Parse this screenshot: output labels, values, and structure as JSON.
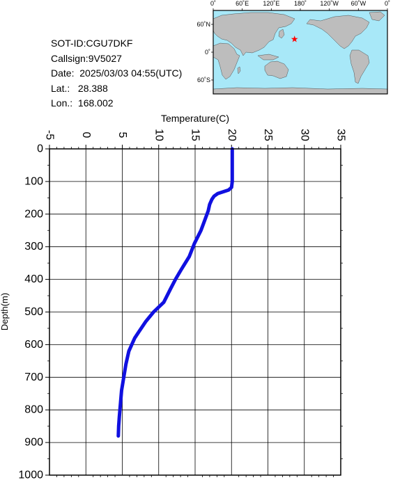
{
  "info": {
    "sot_id": "SOT-ID:CGU7DKF",
    "callsign": "Callsign:9V5027",
    "date": "Date:  2025/03/03 04:55(UTC)",
    "lat": "Lat.:   28.388",
    "lon": "Lon.:  168.002"
  },
  "map": {
    "lon_labels": [
      "0˚",
      "60˚E",
      "120˚E",
      "180˚",
      "120˚W",
      "60˚W",
      "0˚"
    ],
    "lat_labels": [
      "60˚N",
      "0˚",
      "60˚S"
    ],
    "marker_lat": 28.388,
    "marker_lon": 168.002,
    "ocean_color": "#a8e8f8",
    "land_color": "#bdbdbd",
    "marker_color": "#ff0000"
  },
  "chart_data": {
    "type": "line",
    "xlabel": "Temperature(C)",
    "ylabel": "Depth(m)",
    "xlim": [
      -5,
      35
    ],
    "ylim": [
      0,
      1000
    ],
    "x_ticks": [
      -5,
      0,
      5,
      10,
      15,
      20,
      25,
      30,
      35
    ],
    "y_ticks": [
      0,
      100,
      200,
      300,
      400,
      500,
      600,
      700,
      800,
      900,
      1000
    ],
    "grid": true,
    "line_color": "#1010e0",
    "series": [
      {
        "depth": [
          0,
          50,
          100,
          118,
          126,
          132,
          137,
          145,
          155,
          170,
          190,
          220,
          250,
          290,
          330,
          370,
          400,
          430,
          470,
          500,
          530,
          560,
          580,
          600,
          620,
          660,
          700,
          740,
          780,
          820,
          850,
          880
        ],
        "temperature": [
          20.1,
          20.1,
          20.1,
          20.0,
          19.6,
          18.8,
          18.1,
          17.6,
          17.3,
          17.0,
          16.8,
          16.3,
          15.8,
          14.9,
          14.2,
          13.1,
          12.3,
          11.6,
          10.7,
          9.3,
          8.2,
          7.3,
          6.7,
          6.3,
          5.9,
          5.5,
          5.2,
          4.9,
          4.75,
          4.6,
          4.5,
          4.45
        ]
      }
    ]
  }
}
